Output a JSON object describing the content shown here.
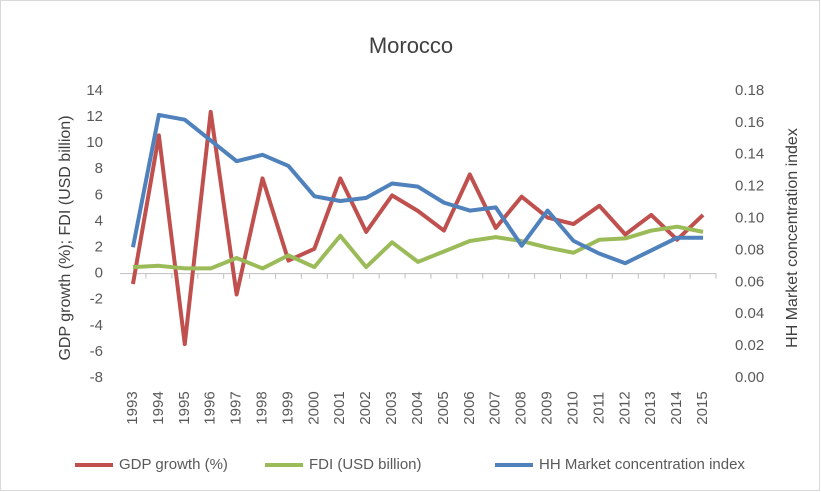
{
  "chart_data": {
    "type": "line",
    "title": "Morocco",
    "y_label": "GDP growth (%); FDI (USD billion)",
    "y2_label": "HH Market concentration index",
    "categories": [
      "1993",
      "1994",
      "1995",
      "1996",
      "1997",
      "1998",
      "1999",
      "2000",
      "2001",
      "2002",
      "2003",
      "2004",
      "2005",
      "2006",
      "2007",
      "2008",
      "2009",
      "2010",
      "2011",
      "2012",
      "2013",
      "2014",
      "2015"
    ],
    "series": [
      {
        "name": "GDP growth (%)",
        "color": "#c0504d",
        "values": [
          -0.8,
          10.6,
          -5.4,
          12.4,
          -1.6,
          7.3,
          1.0,
          1.9,
          7.3,
          3.2,
          6.0,
          4.8,
          3.3,
          7.6,
          3.5,
          5.9,
          4.3,
          3.8,
          5.2,
          3.0,
          4.5,
          2.6,
          4.5
        ]
      },
      {
        "name": "FDI (USD billion)",
        "color": "#9bbb59",
        "values": [
          0.5,
          0.6,
          0.4,
          0.4,
          1.2,
          0.4,
          1.4,
          0.5,
          2.9,
          0.5,
          2.4,
          0.9,
          1.7,
          2.5,
          2.8,
          2.5,
          2.0,
          1.6,
          2.6,
          2.7,
          3.3,
          3.6,
          3.2
        ]
      },
      {
        "name": "HH Market concentration index",
        "color": "#4f81bd",
        "axis": "y2",
        "values": [
          0.082,
          0.165,
          0.162,
          0.149,
          0.136,
          0.14,
          0.133,
          0.114,
          0.111,
          0.113,
          0.122,
          0.12,
          0.11,
          0.105,
          0.107,
          0.083,
          0.105,
          0.086,
          0.078,
          0.072,
          0.08,
          0.088,
          0.088
        ]
      }
    ],
    "ylim": [
      -8,
      14
    ],
    "yticks": [
      -8,
      -6,
      -4,
      -2,
      0,
      2,
      4,
      6,
      8,
      10,
      12,
      14
    ],
    "y2lim": [
      0,
      0.18
    ],
    "y2ticks": [
      {
        "value": 0,
        "label": "0.00"
      },
      {
        "value": 0.02,
        "label": "0.02"
      },
      {
        "value": 0.04,
        "label": "0.04"
      },
      {
        "value": 0.06,
        "label": "0.06"
      },
      {
        "value": 0.08,
        "label": "0.08"
      },
      {
        "value": 0.1,
        "label": "0.10"
      },
      {
        "value": 0.12,
        "label": "0.12"
      },
      {
        "value": 0.14,
        "label": "0.14"
      },
      {
        "value": 0.16,
        "label": "0.16"
      },
      {
        "value": 0.18,
        "label": "0.18"
      }
    ],
    "legend": "bottom"
  }
}
